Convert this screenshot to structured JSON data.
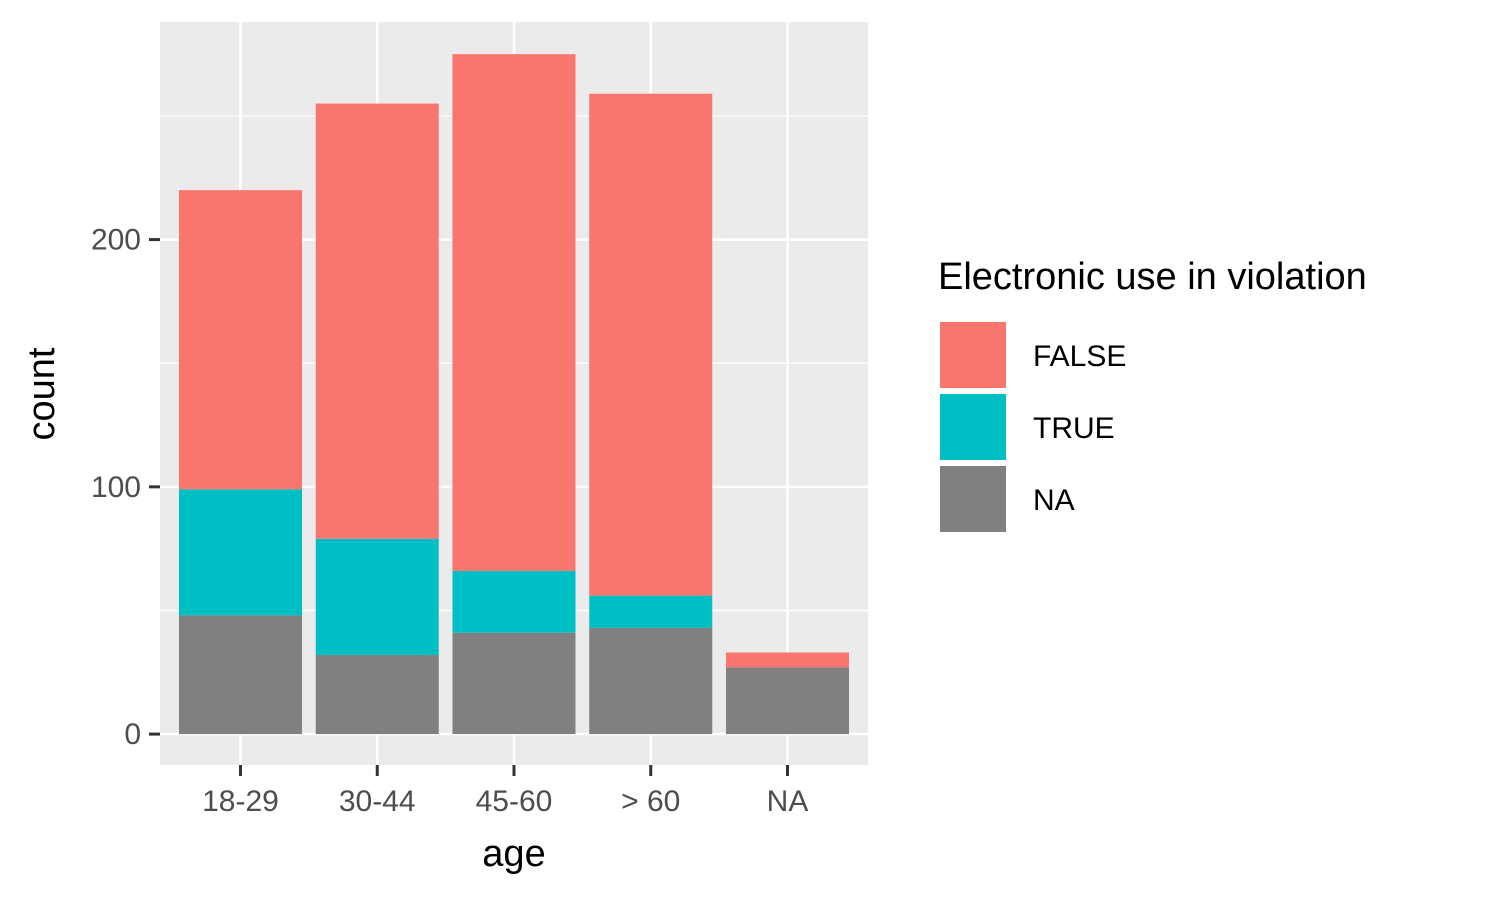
{
  "chart_data": {
    "type": "bar",
    "stacked": true,
    "title": "",
    "xlabel": "age",
    "ylabel": "count",
    "categories": [
      "18-29",
      "30-44",
      "45-60",
      "> 60",
      "NA"
    ],
    "series": [
      {
        "name": "NA",
        "color": "#808080",
        "values": [
          48,
          32,
          41,
          43,
          27
        ]
      },
      {
        "name": "TRUE",
        "color": "#00BFC4",
        "values": [
          51,
          47,
          25,
          13,
          0
        ]
      },
      {
        "name": "FALSE",
        "color": "#F8766D",
        "values": [
          121,
          176,
          209,
          203,
          6
        ]
      }
    ],
    "yticks": [
      0,
      100,
      200
    ],
    "ylim": [
      -12.5,
      288
    ],
    "grid": true,
    "panel_background": "#EBEBEB",
    "legend": {
      "title": "Electronic use in violation",
      "placement": "right",
      "entries": [
        {
          "label": "FALSE",
          "color": "#F8766D"
        },
        {
          "label": "TRUE",
          "color": "#00BFC4"
        },
        {
          "label": "NA",
          "color": "#808080"
        }
      ]
    }
  }
}
